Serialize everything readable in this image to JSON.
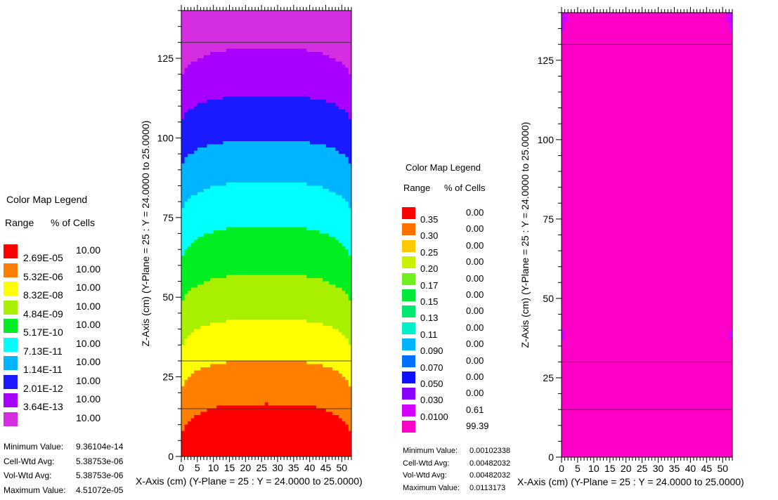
{
  "legend_left": {
    "title": "Color Map Legend",
    "col_range": "Range",
    "col_pct": "% of Cells",
    "items": [
      {
        "label": "2.69E-05",
        "pct": "10.00",
        "color": "#ff0000"
      },
      {
        "label": "5.32E-06",
        "pct": "10.00",
        "color": "#ff7f00"
      },
      {
        "label": "8.32E-08",
        "pct": "10.00",
        "color": "#ffff00"
      },
      {
        "label": "4.84E-09",
        "pct": "10.00",
        "color": "#a8f000"
      },
      {
        "label": "5.17E-10",
        "pct": "10.00",
        "color": "#00ee22"
      },
      {
        "label": "7.13E-11",
        "pct": "10.00",
        "color": "#00ffff"
      },
      {
        "label": "1.14E-11",
        "pct": "10.00",
        "color": "#00b4ff"
      },
      {
        "label": "2.01E-12",
        "pct": "10.00",
        "color": "#1a1aff"
      },
      {
        "label": "3.64E-13",
        "pct": "10.00",
        "color": "#a800ff"
      },
      {
        "label": "",
        "pct": "10.00",
        "color": "#d42ee0"
      }
    ],
    "stats": [
      {
        "name": "Minimum Value:",
        "value": "9.36104e-14"
      },
      {
        "name": "Cell-Wtd Avg:",
        "value": "5.38753e-06"
      },
      {
        "name": "Vol-Wtd Avg:",
        "value": "5.38753e-06"
      },
      {
        "name": "Maximum Value:",
        "value": "4.51072e-05"
      }
    ]
  },
  "legend_right": {
    "title": "Color Map Legend",
    "col_range": "Range",
    "col_pct": "% of Cells",
    "items": [
      {
        "label": "0.35",
        "pct": "0.00",
        "color": "#ff0000"
      },
      {
        "label": "0.30",
        "pct": "0.00",
        "color": "#ff7000"
      },
      {
        "label": "0.25",
        "pct": "0.00",
        "color": "#ffc800"
      },
      {
        "label": "0.20",
        "pct": "0.00",
        "color": "#c8f000"
      },
      {
        "label": "0.17",
        "pct": "0.00",
        "color": "#70f020"
      },
      {
        "label": "0.15",
        "pct": "0.00",
        "color": "#00e838"
      },
      {
        "label": "0.13",
        "pct": "0.00",
        "color": "#00e870"
      },
      {
        "label": "0.11",
        "pct": "0.00",
        "color": "#00f0c8"
      },
      {
        "label": "0.090",
        "pct": "0.00",
        "color": "#00b4ff"
      },
      {
        "label": "0.070",
        "pct": "0.00",
        "color": "#0070ff"
      },
      {
        "label": "0.050",
        "pct": "0.00",
        "color": "#1010ff"
      },
      {
        "label": "0.030",
        "pct": "0.00",
        "color": "#8800ff"
      },
      {
        "label": "0.0100",
        "pct": "0.61",
        "color": "#d400ff"
      },
      {
        "label": "",
        "pct": "99.39",
        "color": "#ff00c8"
      }
    ],
    "stats": [
      {
        "name": "Minimum Value:",
        "value": "0.00102338"
      },
      {
        "name": "Cell-Wtd Avg:",
        "value": "0.00482032"
      },
      {
        "name": "Vol-Wtd Avg:",
        "value": "0.00482032"
      },
      {
        "name": "Maximum Value:",
        "value": "0.0113173"
      }
    ]
  },
  "chart_data": [
    {
      "type": "heatmap",
      "xlabel": "X-Axis (cm) (Y-Plane = 25 : Y = 24.0000 to 25.0000)",
      "ylabel": "Z-Axis (cm) (Y-Plane = 25 : Y = 24.0000 to 25.0000)",
      "xlim": [
        0,
        53
      ],
      "ylim": [
        0,
        140
      ],
      "xticks": [
        0,
        5,
        10,
        15,
        20,
        25,
        30,
        35,
        40,
        45,
        50
      ],
      "yticks": [
        0,
        25,
        50,
        75,
        100,
        125
      ],
      "region_lines_z": [
        15,
        30,
        130
      ],
      "color_bands": [
        {
          "legend_label": "2.69E-05",
          "color": "#ff0000",
          "z_edge": 5.5,
          "z_center": 16.5
        },
        {
          "legend_label": "5.32E-06",
          "color": "#ff7f00",
          "z_edge": 20,
          "z_center": 30
        },
        {
          "legend_label": "8.32E-08",
          "color": "#ffff00",
          "z_edge": 33,
          "z_center": 43
        },
        {
          "legend_label": "4.84E-09",
          "color": "#a8f000",
          "z_edge": 46,
          "z_center": 57
        },
        {
          "legend_label": "5.17E-10",
          "color": "#00ee22",
          "z_edge": 60,
          "z_center": 72
        },
        {
          "legend_label": "7.13E-11",
          "color": "#00ffff",
          "z_edge": 75,
          "z_center": 86
        },
        {
          "legend_label": "1.14E-11",
          "color": "#00b4ff",
          "z_edge": 90,
          "z_center": 99
        },
        {
          "legend_label": "2.01E-12",
          "color": "#1a1aff",
          "z_edge": 104,
          "z_center": 113
        },
        {
          "legend_label": "3.64E-13",
          "color": "#a800ff",
          "z_edge": 117,
          "z_center": 128
        },
        {
          "legend_label": "",
          "color": "#d42ee0",
          "z_edge": 140,
          "z_center": 140
        }
      ]
    },
    {
      "type": "heatmap",
      "xlabel": "X-Axis (cm) (Y-Plane = 25 : Y = 24.0000 to 25.0000)",
      "ylabel": "Z-Axis (cm) (Y-Plane = 25 : Y = 24.0000 to 25.0000)",
      "xlim": [
        0,
        53
      ],
      "ylim": [
        0,
        140
      ],
      "xticks": [
        0,
        5,
        10,
        15,
        20,
        25,
        30,
        35,
        40,
        45,
        50
      ],
      "yticks": [
        0,
        25,
        50,
        75,
        100,
        125
      ],
      "region_lines_z": [
        15,
        30,
        130
      ],
      "background_color": "#ff00c8",
      "corner_color": "#d400ff"
    }
  ]
}
